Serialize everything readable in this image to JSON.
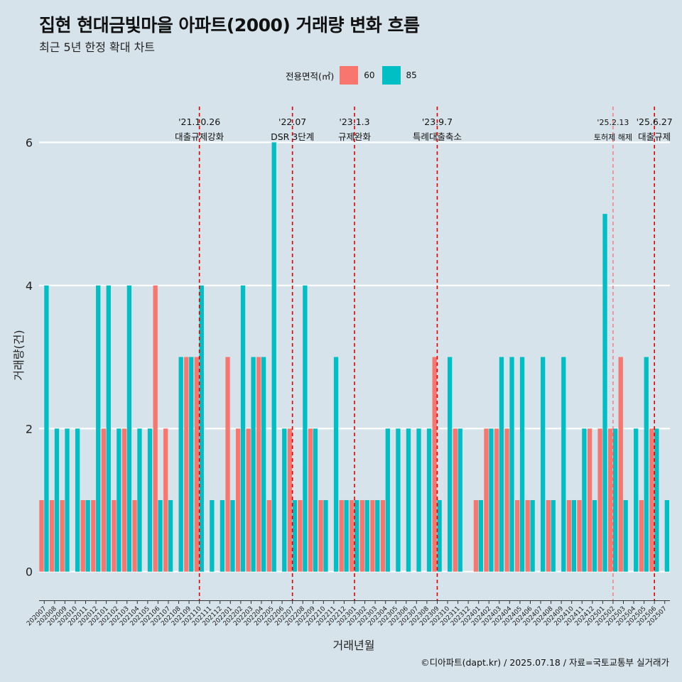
{
  "title": "집현 현대금빛마을 아파트(2000) 거래량 변화 흐름",
  "subtitle": "최근 5년 한정 확대 차트",
  "caption": "©디아파트(dapt.kr) / 2025.07.18 / 자료=국토교통부 실거래가",
  "legend": {
    "title": "전용면적(㎡)",
    "items": [
      {
        "label": "60",
        "color": "#f8766d"
      },
      {
        "label": "85",
        "color": "#00bfc4"
      }
    ]
  },
  "chart_data": {
    "type": "bar",
    "position": "dodge",
    "xlabel": "거래년월",
    "ylabel": "거래량(건)",
    "ylim": [
      -0.4,
      6.5
    ],
    "yticks": [
      0,
      2,
      4,
      6
    ],
    "grid": true,
    "categories": [
      "202007",
      "202008",
      "202009",
      "202010",
      "202011",
      "202012",
      "202101",
      "202102",
      "202103",
      "202104",
      "202105",
      "202106",
      "202107",
      "202108",
      "202109",
      "202110",
      "202111",
      "202112",
      "202201",
      "202202",
      "202203",
      "202204",
      "202205",
      "202206",
      "202207",
      "202208",
      "202209",
      "202210",
      "202211",
      "202212",
      "202301",
      "202302",
      "202303",
      "202304",
      "202305",
      "202306",
      "202307",
      "202308",
      "202309",
      "202310",
      "202311",
      "202312",
      "202401",
      "202402",
      "202403",
      "202404",
      "202405",
      "202406",
      "202407",
      "202408",
      "202409",
      "202410",
      "202411",
      "202412",
      "202501",
      "202502",
      "202503",
      "202504",
      "202505",
      "202506",
      "202507"
    ],
    "series": [
      {
        "name": "60",
        "color": "#f8766d",
        "values": [
          1,
          1,
          1,
          0,
          1,
          1,
          2,
          1,
          2,
          1,
          0,
          4,
          2,
          0,
          3,
          3,
          0,
          0,
          3,
          2,
          2,
          3,
          1,
          0,
          2,
          1,
          2,
          1,
          0,
          1,
          1,
          1,
          1,
          1,
          0,
          0,
          0,
          0,
          3,
          0,
          2,
          0,
          1,
          2,
          2,
          2,
          1,
          1,
          0,
          1,
          0,
          1,
          1,
          2,
          2,
          2,
          3,
          0,
          1,
          2,
          0
        ]
      },
      {
        "name": "85",
        "color": "#00bfc4",
        "values": [
          4,
          2,
          2,
          2,
          1,
          4,
          4,
          2,
          4,
          2,
          2,
          1,
          1,
          3,
          3,
          4,
          1,
          1,
          1,
          4,
          3,
          3,
          6,
          2,
          1,
          4,
          2,
          1,
          3,
          1,
          1,
          1,
          1,
          2,
          2,
          2,
          2,
          2,
          1,
          3,
          2,
          0,
          1,
          2,
          3,
          3,
          3,
          1,
          3,
          1,
          3,
          1,
          2,
          1,
          5,
          2,
          1,
          2,
          3,
          2,
          1
        ]
      }
    ],
    "annotations": [
      {
        "x": "202110",
        "date": "'21.10.26",
        "label": "대출규제강화",
        "style": "major"
      },
      {
        "x": "202207",
        "date": "'22.07",
        "label": "DSR 3단계",
        "style": "major"
      },
      {
        "x": "202301",
        "date": "'23.1.3",
        "label": "규제완화",
        "style": "major"
      },
      {
        "x": "202309",
        "date": "'23.9.7",
        "label": "특례대출축소",
        "style": "major"
      },
      {
        "x": "202502",
        "date": "'25.2.13",
        "label": "토허제 해제",
        "style": "minor"
      },
      {
        "x": "202506",
        "date": "'25.6.27",
        "label": "대출규제",
        "style": "major"
      }
    ]
  }
}
